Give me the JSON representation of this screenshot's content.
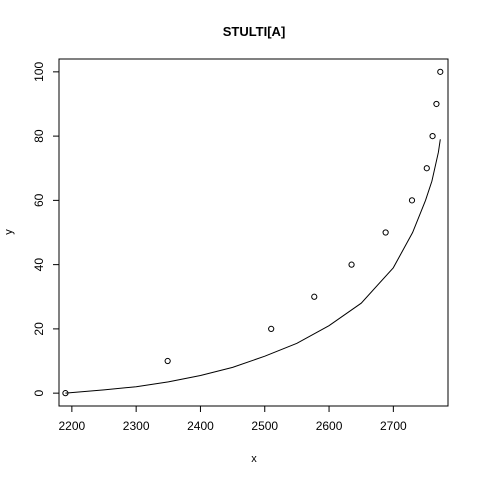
{
  "chart_data": {
    "type": "scatter",
    "title": "STULTI[A]",
    "xlabel": "x",
    "ylabel": "y",
    "xlim": [
      2180,
      2785
    ],
    "ylim": [
      -4,
      104
    ],
    "x_ticks": [
      2200,
      2300,
      2400,
      2500,
      2600,
      2700
    ],
    "y_ticks": [
      0,
      20,
      40,
      60,
      80,
      100
    ],
    "grid": false,
    "legend": "none",
    "series": [
      {
        "type": "scatter",
        "marker": "open-circle",
        "x": [
          2190,
          2349,
          2510,
          2577,
          2635,
          2688,
          2729,
          2752,
          2761,
          2767,
          2773
        ],
        "y": [
          0,
          10,
          20,
          30,
          40,
          50,
          60,
          70,
          80,
          90,
          100
        ]
      },
      {
        "type": "line",
        "x": [
          2190,
          2250,
          2300,
          2350,
          2400,
          2450,
          2500,
          2550,
          2600,
          2650,
          2700,
          2730,
          2750,
          2760,
          2770,
          2773
        ],
        "y": [
          0,
          1,
          2,
          3.5,
          5.5,
          8,
          11.5,
          15.5,
          21,
          28,
          39,
          50,
          60,
          66,
          75,
          79
        ]
      }
    ]
  }
}
